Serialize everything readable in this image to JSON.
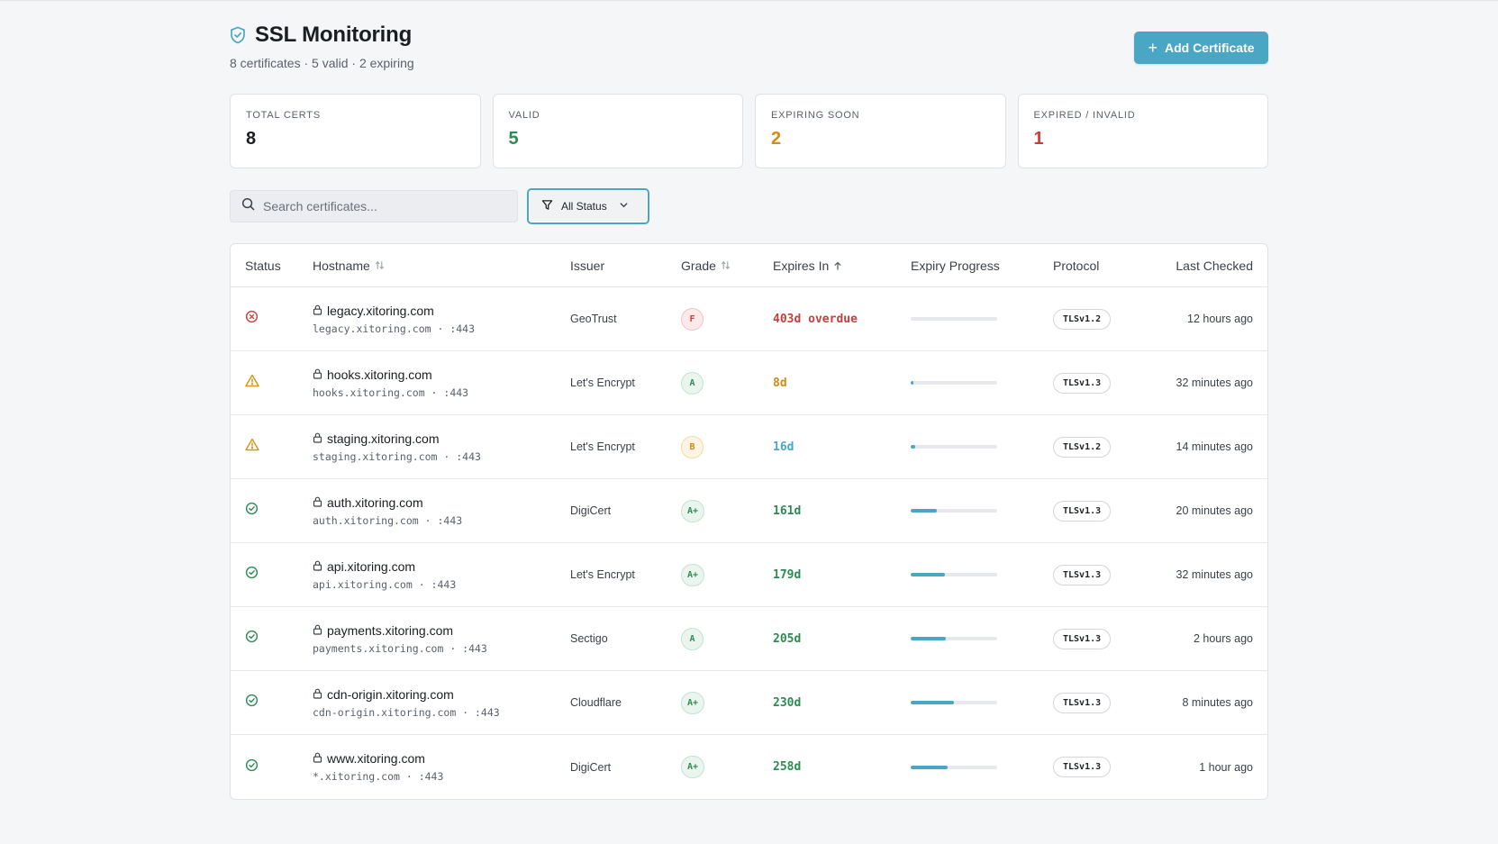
{
  "header": {
    "title": "SSL Monitoring",
    "subtitle": "8 certificates · 5 valid · 2 expiring",
    "add_button": "Add Certificate",
    "accent": "#4aa7c4"
  },
  "stats": [
    {
      "label": "TOTAL CERTS",
      "value": "8",
      "color": "#1a1d21"
    },
    {
      "label": "VALID",
      "value": "5",
      "color": "#2e8a55"
    },
    {
      "label": "EXPIRING SOON",
      "value": "2",
      "color": "#d58a16"
    },
    {
      "label": "EXPIRED / INVALID",
      "value": "1",
      "color": "#c4403d"
    }
  ],
  "search": {
    "placeholder": "Search certificates...",
    "value": ""
  },
  "filter": {
    "selected": "All Status"
  },
  "table": {
    "columns": {
      "status": "Status",
      "hostname": "Hostname",
      "issuer": "Issuer",
      "grade": "Grade",
      "expires": "Expires In",
      "progress": "Expiry Progress",
      "protocol": "Protocol",
      "last_checked": "Last Checked"
    },
    "rows": [
      {
        "status": "invalid",
        "hostname": "legacy.xitoring.com",
        "sub": "legacy.xitoring.com  ·  :443",
        "issuer": "GeoTrust",
        "grade": "F",
        "grade_kind": "bad",
        "expires": "403d overdue",
        "expires_color": "#c4403d",
        "progress": 0,
        "protocol": "TLSv1.2",
        "last_checked": "12 hours ago"
      },
      {
        "status": "warning",
        "hostname": "hooks.xitoring.com",
        "sub": "hooks.xitoring.com  ·  :443",
        "issuer": "Let's Encrypt",
        "grade": "A",
        "grade_kind": "good",
        "expires": "8d",
        "expires_color": "#d58a16",
        "progress": 0.03,
        "protocol": "TLSv1.3",
        "last_checked": "32 minutes ago"
      },
      {
        "status": "warning",
        "hostname": "staging.xitoring.com",
        "sub": "staging.xitoring.com  ·  :443",
        "issuer": "Let's Encrypt",
        "grade": "B",
        "grade_kind": "warn",
        "expires": "16d",
        "expires_color": "#4aa7c4",
        "progress": 0.05,
        "protocol": "TLSv1.2",
        "last_checked": "14 minutes ago"
      },
      {
        "status": "valid",
        "hostname": "auth.xitoring.com",
        "sub": "auth.xitoring.com  ·  :443",
        "issuer": "DigiCert",
        "grade": "A+",
        "grade_kind": "good",
        "expires": "161d",
        "expires_color": "#2e8a55",
        "progress": 0.3,
        "protocol": "TLSv1.3",
        "last_checked": "20 minutes ago"
      },
      {
        "status": "valid",
        "hostname": "api.xitoring.com",
        "sub": "api.xitoring.com  ·  :443",
        "issuer": "Let's Encrypt",
        "grade": "A+",
        "grade_kind": "good",
        "expires": "179d",
        "expires_color": "#2e8a55",
        "progress": 0.4,
        "protocol": "TLSv1.3",
        "last_checked": "32 minutes ago"
      },
      {
        "status": "valid",
        "hostname": "payments.xitoring.com",
        "sub": "payments.xitoring.com  ·  :443",
        "issuer": "Sectigo",
        "grade": "A",
        "grade_kind": "good",
        "expires": "205d",
        "expires_color": "#2e8a55",
        "progress": 0.41,
        "protocol": "TLSv1.3",
        "last_checked": "2 hours ago"
      },
      {
        "status": "valid",
        "hostname": "cdn-origin.xitoring.com",
        "sub": "cdn-origin.xitoring.com  ·  :443",
        "issuer": "Cloudflare",
        "grade": "A+",
        "grade_kind": "good",
        "expires": "230d",
        "expires_color": "#2e8a55",
        "progress": 0.5,
        "protocol": "TLSv1.3",
        "last_checked": "8 minutes ago"
      },
      {
        "status": "valid",
        "hostname": "www.xitoring.com",
        "sub": "*.xitoring.com  ·  :443",
        "issuer": "DigiCert",
        "grade": "A+",
        "grade_kind": "good",
        "expires": "258d",
        "expires_color": "#2e8a55",
        "progress": 0.43,
        "protocol": "TLSv1.3",
        "last_checked": "1 hour ago"
      }
    ]
  }
}
